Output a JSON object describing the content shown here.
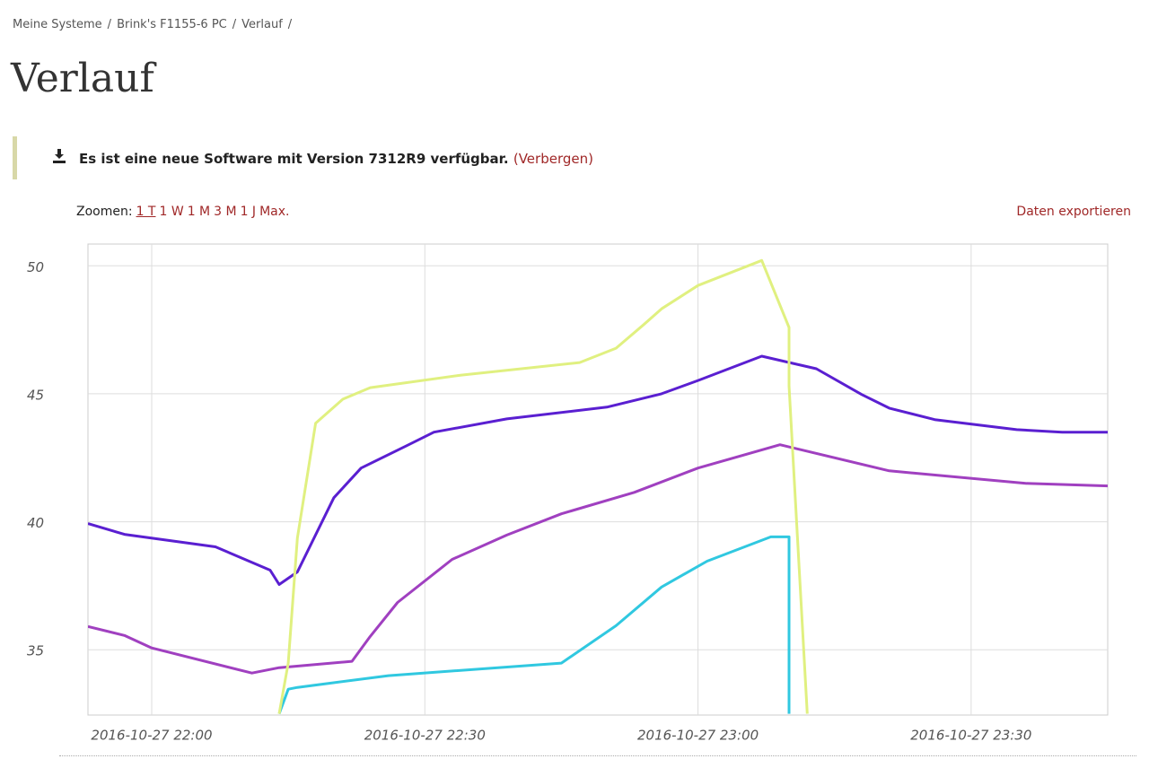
{
  "breadcrumb": [
    "Meine Systeme",
    "Brink's F1155-6 PC",
    "Verlauf"
  ],
  "breadcrumb_separator": "/",
  "title": "Verlauf",
  "notice": {
    "text": "Es ist eine neue Software mit Version 7312R9 verfügbar.",
    "link": "(Verbergen)"
  },
  "zoom": {
    "label": "Zoomen:",
    "options": [
      "1 T",
      "1 W",
      "1 M",
      "3 M",
      "1 J",
      "Max."
    ]
  },
  "export": "Daten exportieren",
  "chart_data": {
    "type": "line",
    "xlim": [
      "2016-10-27 21:53",
      "2016-10-27 23:45"
    ],
    "xticks": [
      "2016-10-27 22:00",
      "2016-10-27 22:30",
      "2016-10-27 23:00",
      "2016-10-27 23:30"
    ],
    "ylim": [
      32.45,
      50.85
    ],
    "yticks": [
      35,
      40,
      45,
      50
    ],
    "grid": true,
    "series": [
      {
        "color": "#5a1fd1",
        "x": [
          "2016-10-27 21:53",
          "2016-10-27 21:57",
          "2016-10-27 22:07",
          "2016-10-27 22:13",
          "2016-10-27 22:14",
          "2016-10-27 22:16",
          "2016-10-27 22:20",
          "2016-10-27 22:23",
          "2016-10-27 22:28",
          "2016-10-27 22:31",
          "2016-10-27 22:39",
          "2016-10-27 22:50",
          "2016-10-27 22:56",
          "2016-10-27 23:00",
          "2016-10-27 23:07",
          "2016-10-27 23:13",
          "2016-10-27 23:18",
          "2016-10-27 23:21",
          "2016-10-27 23:26",
          "2016-10-27 23:35",
          "2016-10-27 23:40",
          "2016-10-27 23:45"
        ],
        "values": [
          39.93,
          39.51,
          39.02,
          38.11,
          37.55,
          38.04,
          40.94,
          42.1,
          42.97,
          43.5,
          44.02,
          44.48,
          45.0,
          45.52,
          46.47,
          45.98,
          44.97,
          44.44,
          43.99,
          43.6,
          43.5,
          43.5
        ]
      },
      {
        "color": "#a040c0",
        "x": [
          "2016-10-27 21:53",
          "2016-10-27 21:57",
          "2016-10-27 22:00",
          "2016-10-27 22:11",
          "2016-10-27 22:14",
          "2016-10-27 22:22",
          "2016-10-27 22:24",
          "2016-10-27 22:27",
          "2016-10-27 22:33",
          "2016-10-27 22:39",
          "2016-10-27 22:45",
          "2016-10-27 22:53",
          "2016-10-27 23:00",
          "2016-10-27 23:09",
          "2016-10-27 23:21",
          "2016-10-27 23:36",
          "2016-10-27 23:45"
        ],
        "values": [
          35.91,
          35.56,
          35.07,
          34.09,
          34.3,
          34.55,
          35.52,
          36.85,
          38.53,
          39.48,
          40.31,
          41.15,
          42.1,
          43.01,
          41.99,
          41.5,
          41.4
        ]
      },
      {
        "color": "#30c8e0",
        "x": [
          "2016-10-27 22:14",
          "2016-10-27 22:15",
          "2016-10-27 22:16",
          "2016-10-27 22:26",
          "2016-10-27 22:45",
          "2016-10-27 22:51",
          "2016-10-27 22:56",
          "2016-10-27 23:01",
          "2016-10-27 23:08",
          "2016-10-27 23:10",
          "2016-10-27 23:10",
          "2016-10-27 23:10"
        ],
        "values": [
          32.5,
          33.46,
          33.53,
          33.99,
          34.48,
          35.94,
          37.45,
          38.46,
          39.41,
          39.41,
          34.48,
          32.5
        ]
      },
      {
        "color": "#e0f080",
        "x": [
          "2016-10-27 22:14",
          "2016-10-27 22:15",
          "2016-10-27 22:16",
          "2016-10-27 22:18",
          "2016-10-27 22:21",
          "2016-10-27 22:24",
          "2016-10-27 22:34",
          "2016-10-27 22:47",
          "2016-10-27 22:51",
          "2016-10-27 22:54",
          "2016-10-27 22:56",
          "2016-10-27 23:00",
          "2016-10-27 23:07",
          "2016-10-27 23:10",
          "2016-10-27 23:10",
          "2016-10-27 23:12"
        ],
        "values": [
          32.5,
          34.48,
          39.37,
          43.85,
          44.79,
          45.24,
          45.73,
          46.22,
          46.78,
          47.69,
          48.32,
          49.23,
          50.21,
          47.59,
          45.31,
          32.5
        ]
      }
    ]
  }
}
